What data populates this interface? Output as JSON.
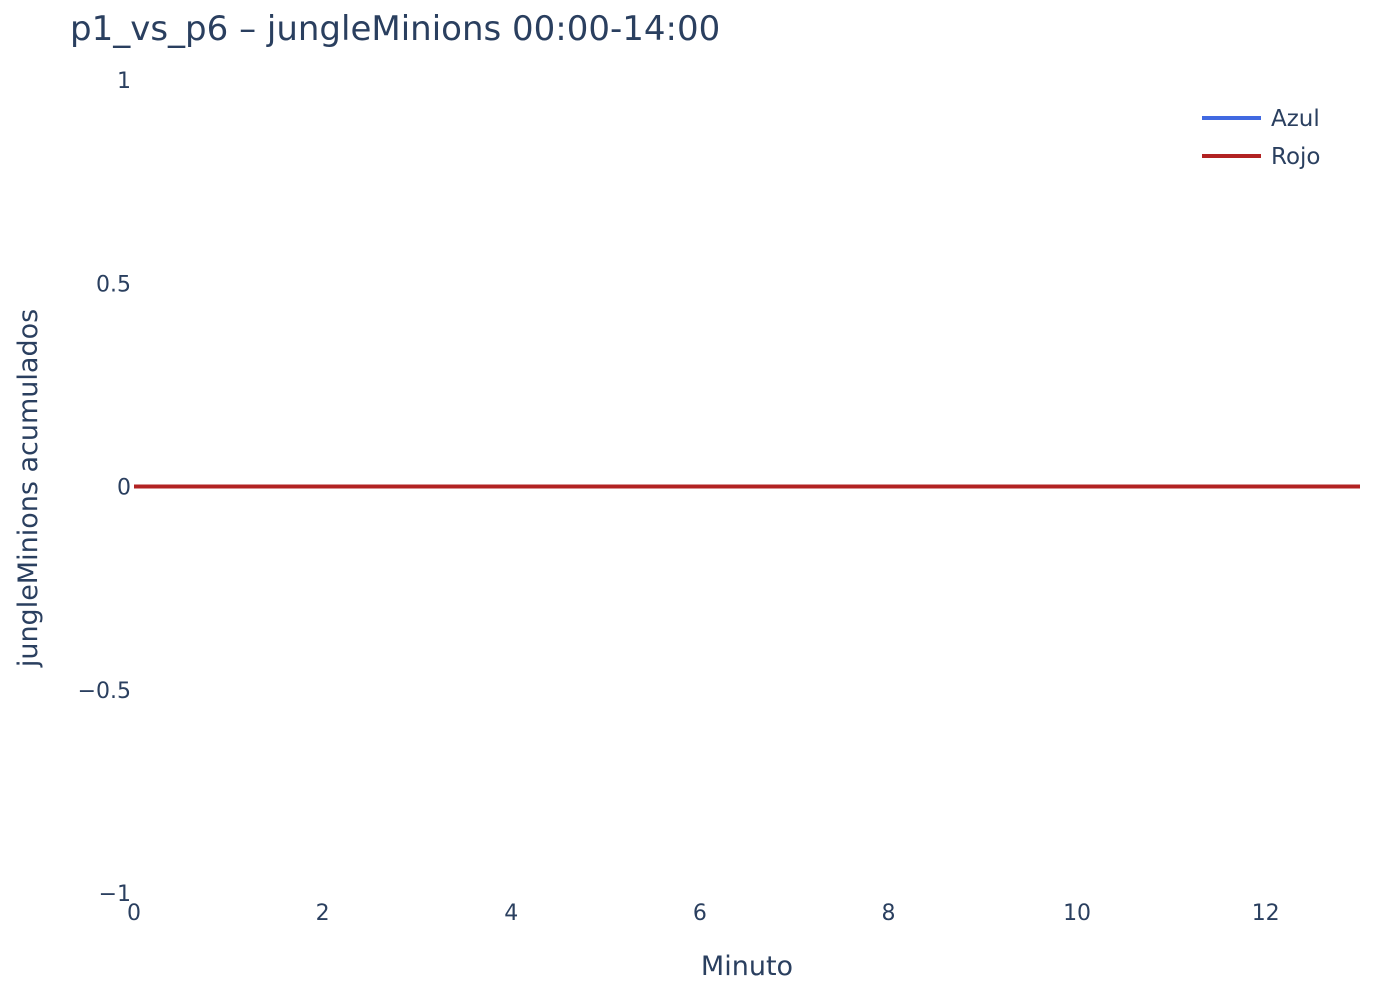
{
  "chart_data": {
    "type": "line",
    "title": "p1_vs_p6 – jungleMinions 00:00-14:00",
    "xlabel": "Minuto",
    "ylabel": "jungleMinions acumulados",
    "xlim": [
      0,
      13
    ],
    "ylim": [
      -1,
      1
    ],
    "x_ticks": [
      0,
      2,
      4,
      6,
      8,
      10,
      12
    ],
    "x_tick_labels": [
      "0",
      "2",
      "4",
      "6",
      "8",
      "10",
      "12"
    ],
    "y_ticks": [
      1,
      0.5,
      0,
      -0.5,
      -1
    ],
    "y_tick_labels": [
      "1",
      "0.5",
      "0",
      "−0.5",
      "−1"
    ],
    "grid": false,
    "legend_position": "top-right",
    "x": [
      0,
      1,
      2,
      3,
      4,
      5,
      6,
      7,
      8,
      9,
      10,
      11,
      12,
      13
    ],
    "series": [
      {
        "name": "Azul",
        "color": "#4169e1",
        "values": [
          0,
          0,
          0,
          0,
          0,
          0,
          0,
          0,
          0,
          0,
          0,
          0,
          0,
          0
        ]
      },
      {
        "name": "Rojo",
        "color": "#b22222",
        "values": [
          0,
          0,
          0,
          0,
          0,
          0,
          0,
          0,
          0,
          0,
          0,
          0,
          0,
          0
        ]
      }
    ]
  }
}
